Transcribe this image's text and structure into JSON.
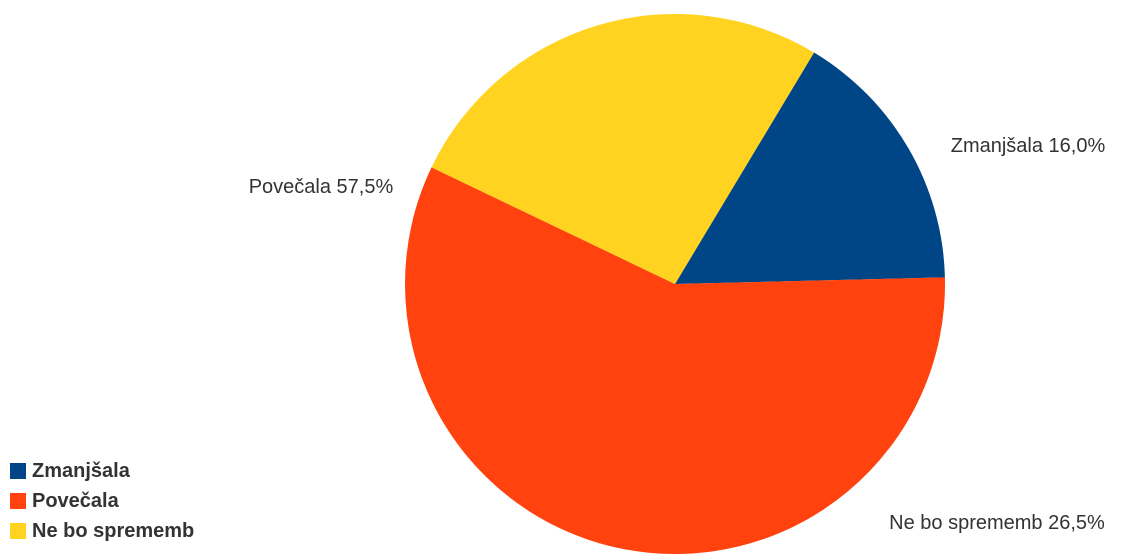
{
  "chart_data": {
    "type": "pie",
    "slices": [
      {
        "name": "Zmanjšala",
        "value": 16.0,
        "label": "Zmanjšala 16,0%",
        "color": "#004586"
      },
      {
        "name": "Povečala",
        "value": 57.5,
        "label": "Povečala 57,5%",
        "color": "#ff420e"
      },
      {
        "name": "Ne bo sprememb",
        "value": 26.5,
        "label": "Ne bo sprememb 26,5%",
        "color": "#ffd320"
      }
    ],
    "legend_position": "bottom-left"
  }
}
